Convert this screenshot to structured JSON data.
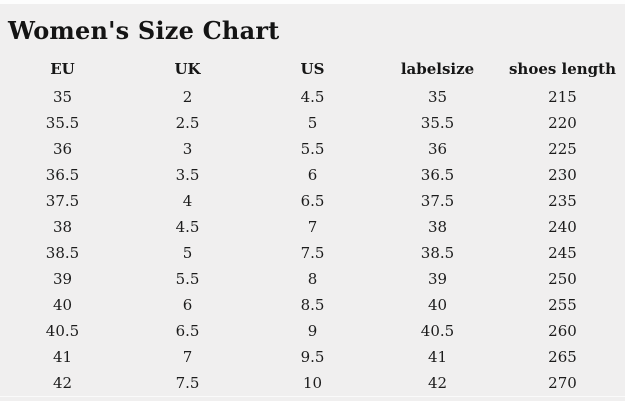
{
  "page": {
    "title_note": "title bound from chart_data.title"
  },
  "colors": {
    "background": "#f0efef",
    "text": "#1c1c1c",
    "title_text": "#141414",
    "row_divider": "#fafafa"
  },
  "chart_data": {
    "type": "table",
    "title": "Women's Size Chart",
    "columns": [
      "EU",
      "UK",
      "US",
      "labelsize",
      "shoes length"
    ],
    "rows": [
      [
        "35",
        "2",
        "4.5",
        "35",
        "215"
      ],
      [
        "35.5",
        "2.5",
        "5",
        "35.5",
        "220"
      ],
      [
        "36",
        "3",
        "5.5",
        "36",
        "225"
      ],
      [
        "36.5",
        "3.5",
        "6",
        "36.5",
        "230"
      ],
      [
        "37.5",
        "4",
        "6.5",
        "37.5",
        "235"
      ],
      [
        "38",
        "4.5",
        "7",
        "38",
        "240"
      ],
      [
        "38.5",
        "5",
        "7.5",
        "38.5",
        "245"
      ],
      [
        "39",
        "5.5",
        "8",
        "39",
        "250"
      ],
      [
        "40",
        "6",
        "8.5",
        "40",
        "255"
      ],
      [
        "40.5",
        "6.5",
        "9",
        "40.5",
        "260"
      ],
      [
        "41",
        "7",
        "9.5",
        "41",
        "265"
      ],
      [
        "42",
        "7.5",
        "10",
        "42",
        "270"
      ]
    ]
  }
}
